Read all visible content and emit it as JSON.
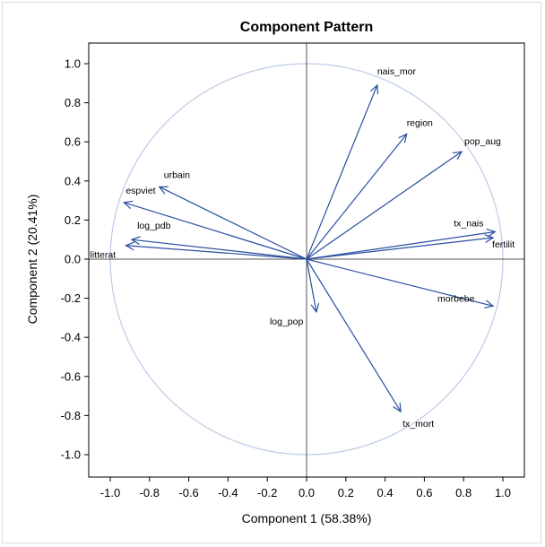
{
  "chart_data": {
    "type": "scatter",
    "subtype": "loading-vectors",
    "title": "Component Pattern",
    "xlabel": "Component 1 (58.38%)",
    "ylabel": "Component 2 (20.41%)",
    "xlim": [
      -1.1,
      1.1
    ],
    "ylim": [
      -1.1,
      1.1
    ],
    "xticks": [
      "-1.0",
      "-0.8",
      "-0.6",
      "-0.4",
      "-0.2",
      "0.0",
      "0.2",
      "0.4",
      "0.6",
      "0.8",
      "1.0"
    ],
    "yticks": [
      "1.0",
      "0.8",
      "0.6",
      "0.4",
      "0.2",
      "0.0",
      "-0.2",
      "-0.4",
      "-0.6",
      "-0.8",
      "-1.0"
    ],
    "reference_circle_radius": 1.0,
    "reference_lines": [
      "x=0",
      "y=0"
    ],
    "colors": {
      "vector": "#2a4ea0",
      "circle": "#bccbe6",
      "reference": "#555555",
      "frame": "#000000"
    },
    "vectors": [
      {
        "name": "nais_mor",
        "x": 0.36,
        "y": 0.89
      },
      {
        "name": "region",
        "x": 0.51,
        "y": 0.64
      },
      {
        "name": "pop_aug",
        "x": 0.79,
        "y": 0.55
      },
      {
        "name": "urbain",
        "x": -0.75,
        "y": 0.37
      },
      {
        "name": "espviet",
        "x": -0.93,
        "y": 0.29
      },
      {
        "name": "log_pdb",
        "x": -0.89,
        "y": 0.1
      },
      {
        "name": "litterat",
        "x": -0.92,
        "y": 0.07
      },
      {
        "name": "tx_nais",
        "x": 0.96,
        "y": 0.14
      },
      {
        "name": "fertilit",
        "x": 0.95,
        "y": 0.11
      },
      {
        "name": "morbebe",
        "x": 0.95,
        "y": -0.24
      },
      {
        "name": "log_pop",
        "x": 0.05,
        "y": -0.27
      },
      {
        "name": "tx_mort",
        "x": 0.48,
        "y": -0.78
      }
    ]
  }
}
